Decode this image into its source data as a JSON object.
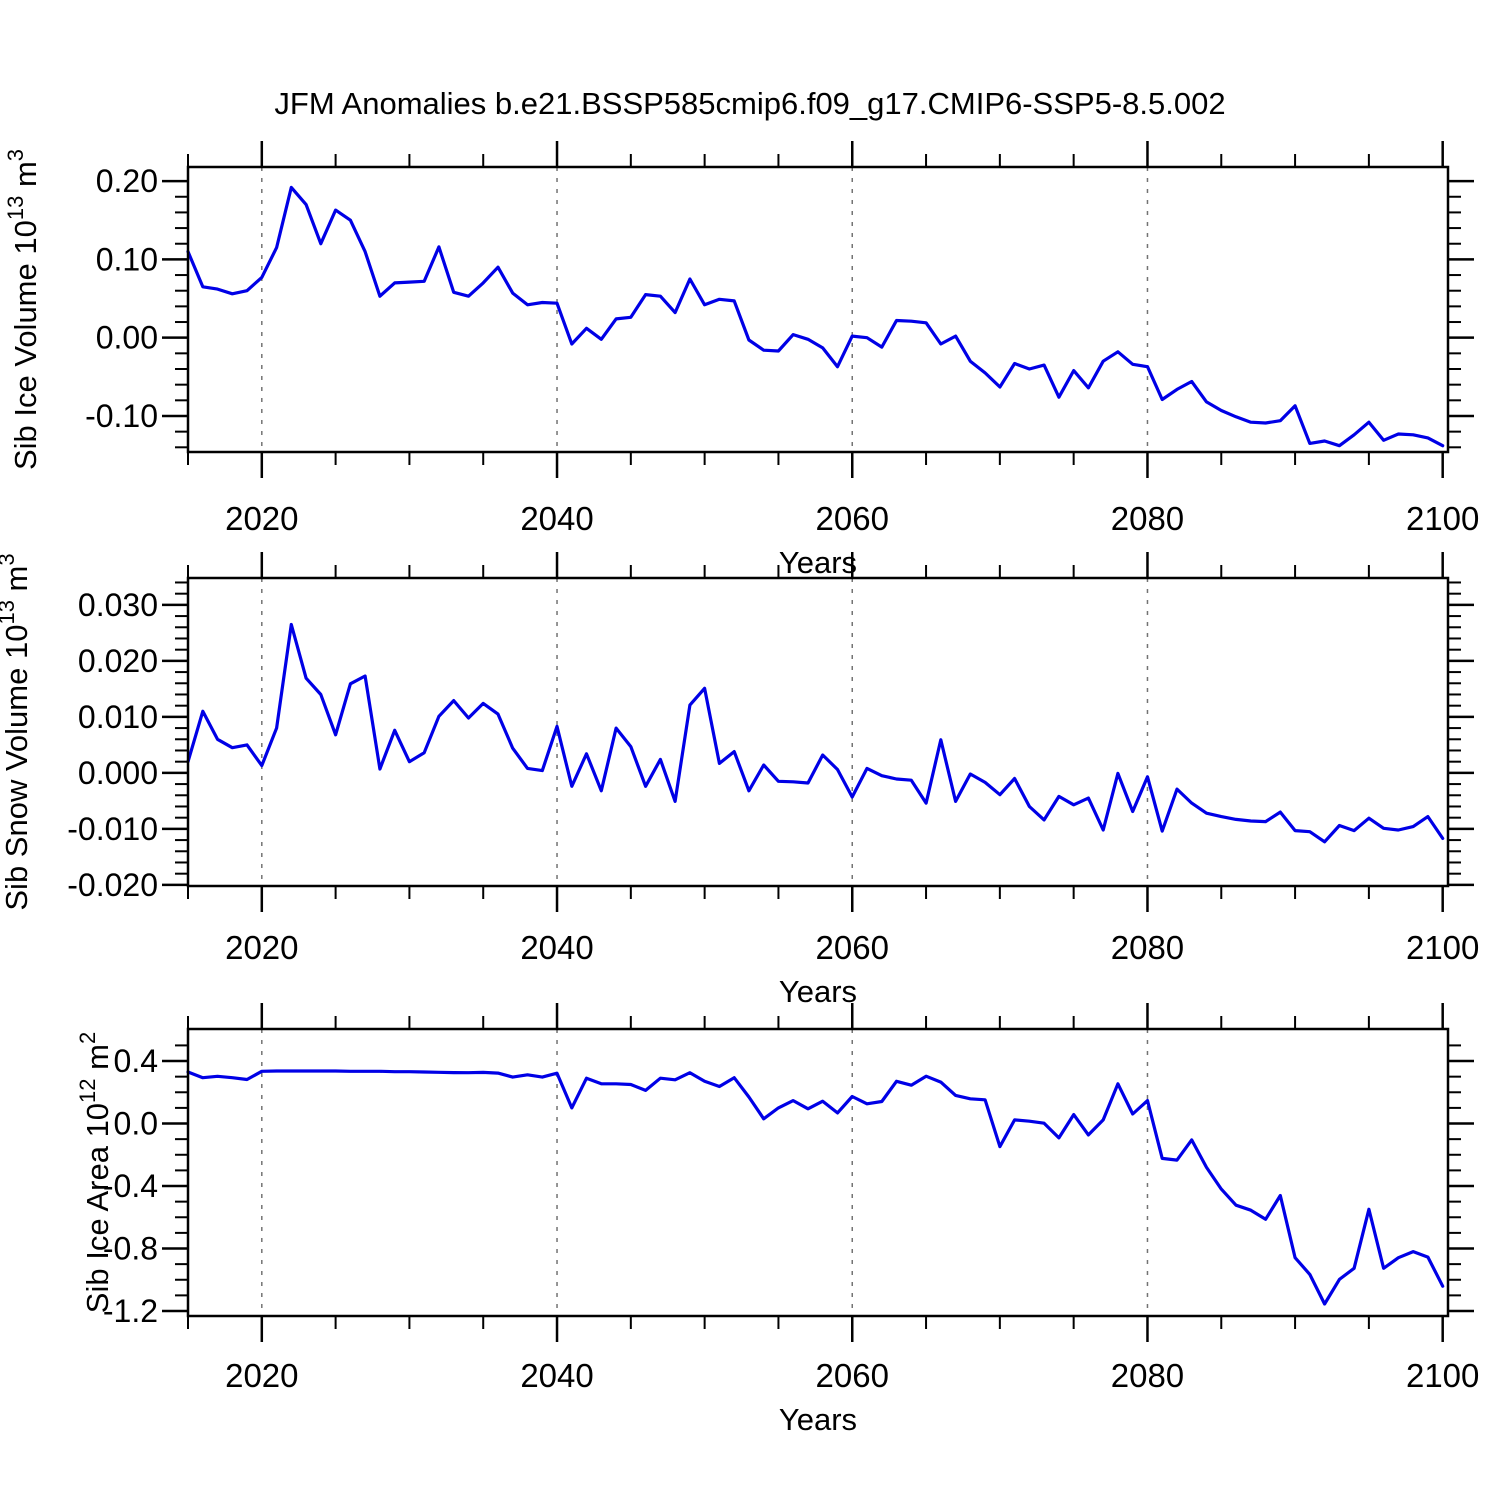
{
  "title": "JFM Anomalies b.e21.BSSP585cmip6.f09_g17.CMIP6-SSP5-8.5.002",
  "colors": {
    "line": "#0000e6",
    "axis": "#000000",
    "grid": "#737373",
    "background": "#ffffff"
  },
  "chart_data": [
    {
      "type": "line",
      "name": "sib-ice-volume",
      "ylabel": "Sib Ice Volume 10^13 m^3",
      "ylabel_rich": [
        {
          "t": "Sib Ice Volume 10"
        },
        {
          "sup": "13"
        },
        {
          "t": " m"
        },
        {
          "sup": "3"
        }
      ],
      "xlabel": "Years",
      "x_start": 2015,
      "x_end": 2100,
      "xticks_major": [
        2020,
        2040,
        2060,
        2080,
        2100
      ],
      "xtick_labels": [
        "2020",
        "2040",
        "2060",
        "2080",
        "2100"
      ],
      "xtick_minor_step": 5,
      "ylim": [
        -0.146,
        0.218
      ],
      "yticks_major": [
        {
          "v": 0.2,
          "label": "0.20"
        },
        {
          "v": 0.1,
          "label": "0.10"
        },
        {
          "v": 0.0,
          "label": "0.00"
        },
        {
          "v": -0.1,
          "label": "-0.10"
        }
      ],
      "ytick_minor_step": 0.02,
      "grid_at": [
        2020,
        2040,
        2060,
        2080
      ],
      "values": [
        0.11,
        0.065,
        0.062,
        0.056,
        0.06,
        0.077,
        0.115,
        0.192,
        0.17,
        0.12,
        0.163,
        0.15,
        0.11,
        0.053,
        0.07,
        0.071,
        0.072,
        0.116,
        0.058,
        0.053,
        0.07,
        0.09,
        0.057,
        0.042,
        0.045,
        0.044,
        -0.008,
        0.012,
        -0.002,
        0.024,
        0.026,
        0.055,
        0.053,
        0.032,
        0.075,
        0.042,
        0.049,
        0.047,
        -0.003,
        -0.016,
        -0.017,
        0.004,
        -0.002,
        -0.013,
        -0.037,
        0.002,
        0.0,
        -0.012,
        0.022,
        0.021,
        0.019,
        -0.008,
        0.002,
        -0.03,
        -0.045,
        -0.063,
        -0.033,
        -0.04,
        -0.035,
        -0.076,
        -0.042,
        -0.064,
        -0.03,
        -0.018,
        -0.034,
        -0.037,
        -0.079,
        -0.066,
        -0.056,
        -0.082,
        -0.093,
        -0.101,
        -0.108,
        -0.109,
        -0.106,
        -0.087,
        -0.135,
        -0.132,
        -0.138,
        -0.124,
        -0.108,
        -0.131,
        -0.123,
        -0.124,
        -0.128,
        -0.138
      ]
    },
    {
      "type": "line",
      "name": "sib-snow-volume",
      "ylabel": "Sib Snow Volume 10^13 m^3",
      "ylabel_rich": [
        {
          "t": "Sib Snow Volume 10"
        },
        {
          "sup": "13"
        },
        {
          "t": " m"
        },
        {
          "sup": "3"
        }
      ],
      "xlabel": "Years",
      "x_start": 2015,
      "x_end": 2100,
      "xticks_major": [
        2020,
        2040,
        2060,
        2080,
        2100
      ],
      "xtick_labels": [
        "2020",
        "2040",
        "2060",
        "2080",
        "2100"
      ],
      "xtick_minor_step": 5,
      "ylim": [
        -0.0202,
        0.0348
      ],
      "yticks_major": [
        {
          "v": 0.03,
          "label": "0.030"
        },
        {
          "v": 0.02,
          "label": "0.020"
        },
        {
          "v": 0.01,
          "label": "0.010"
        },
        {
          "v": 0.0,
          "label": "0.000"
        },
        {
          "v": -0.01,
          "label": "-0.010"
        },
        {
          "v": -0.02,
          "label": "-0.020"
        }
      ],
      "ytick_minor_step": 0.002,
      "grid_at": [
        2020,
        2040,
        2060,
        2080
      ],
      "values": [
        0.002,
        0.011,
        0.006,
        0.0045,
        0.005,
        0.0013,
        0.008,
        0.0265,
        0.0169,
        0.014,
        0.0068,
        0.0159,
        0.0173,
        0.0007,
        0.0076,
        0.002,
        0.0036,
        0.0101,
        0.0129,
        0.0098,
        0.0124,
        0.0105,
        0.0044,
        0.0008,
        0.0004,
        0.0083,
        -0.0024,
        0.0034,
        -0.0032,
        0.008,
        0.0047,
        -0.0024,
        0.0024,
        -0.0051,
        0.0121,
        0.0151,
        0.0017,
        0.0038,
        -0.0032,
        0.0014,
        -0.0015,
        -0.0016,
        -0.0018,
        0.0032,
        0.0006,
        -0.0043,
        0.0008,
        -0.0005,
        -0.0011,
        -0.0013,
        -0.0054,
        0.0059,
        -0.0051,
        -0.0002,
        -0.0017,
        -0.0039,
        -0.001,
        -0.006,
        -0.0084,
        -0.0042,
        -0.0057,
        -0.0045,
        -0.0102,
        -0.0001,
        -0.0069,
        -0.0007,
        -0.0104,
        -0.0029,
        -0.0054,
        -0.0072,
        -0.0078,
        -0.0083,
        -0.0086,
        -0.0087,
        -0.007,
        -0.0103,
        -0.0105,
        -0.0123,
        -0.0094,
        -0.0103,
        -0.0081,
        -0.0099,
        -0.0102,
        -0.0096,
        -0.0078,
        -0.0117
      ]
    },
    {
      "type": "line",
      "name": "sib-ice-area",
      "ylabel": "Sib Ice Area 10^12 m^2",
      "ylabel_rich": [
        {
          "t": "Sib Ice Area 10"
        },
        {
          "sup": "12"
        },
        {
          "t": " m"
        },
        {
          "sup": "2"
        }
      ],
      "xlabel": "Years",
      "x_start": 2015,
      "x_end": 2100,
      "xticks_major": [
        2020,
        2040,
        2060,
        2080,
        2100
      ],
      "xtick_labels": [
        "2020",
        "2040",
        "2060",
        "2080",
        "2100"
      ],
      "xtick_minor_step": 5,
      "ylim": [
        -1.232,
        0.605
      ],
      "yticks_major": [
        {
          "v": 0.4,
          "label": "0.4"
        },
        {
          "v": 0.0,
          "label": "0.0"
        },
        {
          "v": -0.4,
          "label": "-0.4"
        },
        {
          "v": -0.8,
          "label": "-0.8"
        },
        {
          "v": -1.2,
          "label": "-1.2"
        }
      ],
      "ytick_minor_step": 0.1,
      "grid_at": [
        2020,
        2040,
        2060,
        2080
      ],
      "values": [
        0.33,
        0.293,
        0.302,
        0.293,
        0.282,
        0.334,
        0.336,
        0.336,
        0.336,
        0.336,
        0.336,
        0.334,
        0.334,
        0.334,
        0.332,
        0.332,
        0.33,
        0.328,
        0.326,
        0.325,
        0.327,
        0.323,
        0.297,
        0.312,
        0.297,
        0.322,
        0.1,
        0.29,
        0.254,
        0.254,
        0.25,
        0.212,
        0.29,
        0.28,
        0.325,
        0.27,
        0.237,
        0.293,
        0.17,
        0.03,
        0.1,
        0.147,
        0.094,
        0.143,
        0.068,
        0.173,
        0.126,
        0.141,
        0.27,
        0.245,
        0.303,
        0.265,
        0.18,
        0.158,
        0.152,
        -0.148,
        0.023,
        0.015,
        0.002,
        -0.092,
        0.057,
        -0.073,
        0.023,
        0.254,
        0.061,
        0.147,
        -0.223,
        -0.234,
        -0.105,
        -0.281,
        -0.42,
        -0.523,
        -0.555,
        -0.613,
        -0.461,
        -0.859,
        -0.966,
        -1.155,
        -0.998,
        -0.927,
        -0.549,
        -0.927,
        -0.859,
        -0.82,
        -0.855,
        -1.041
      ]
    }
  ]
}
